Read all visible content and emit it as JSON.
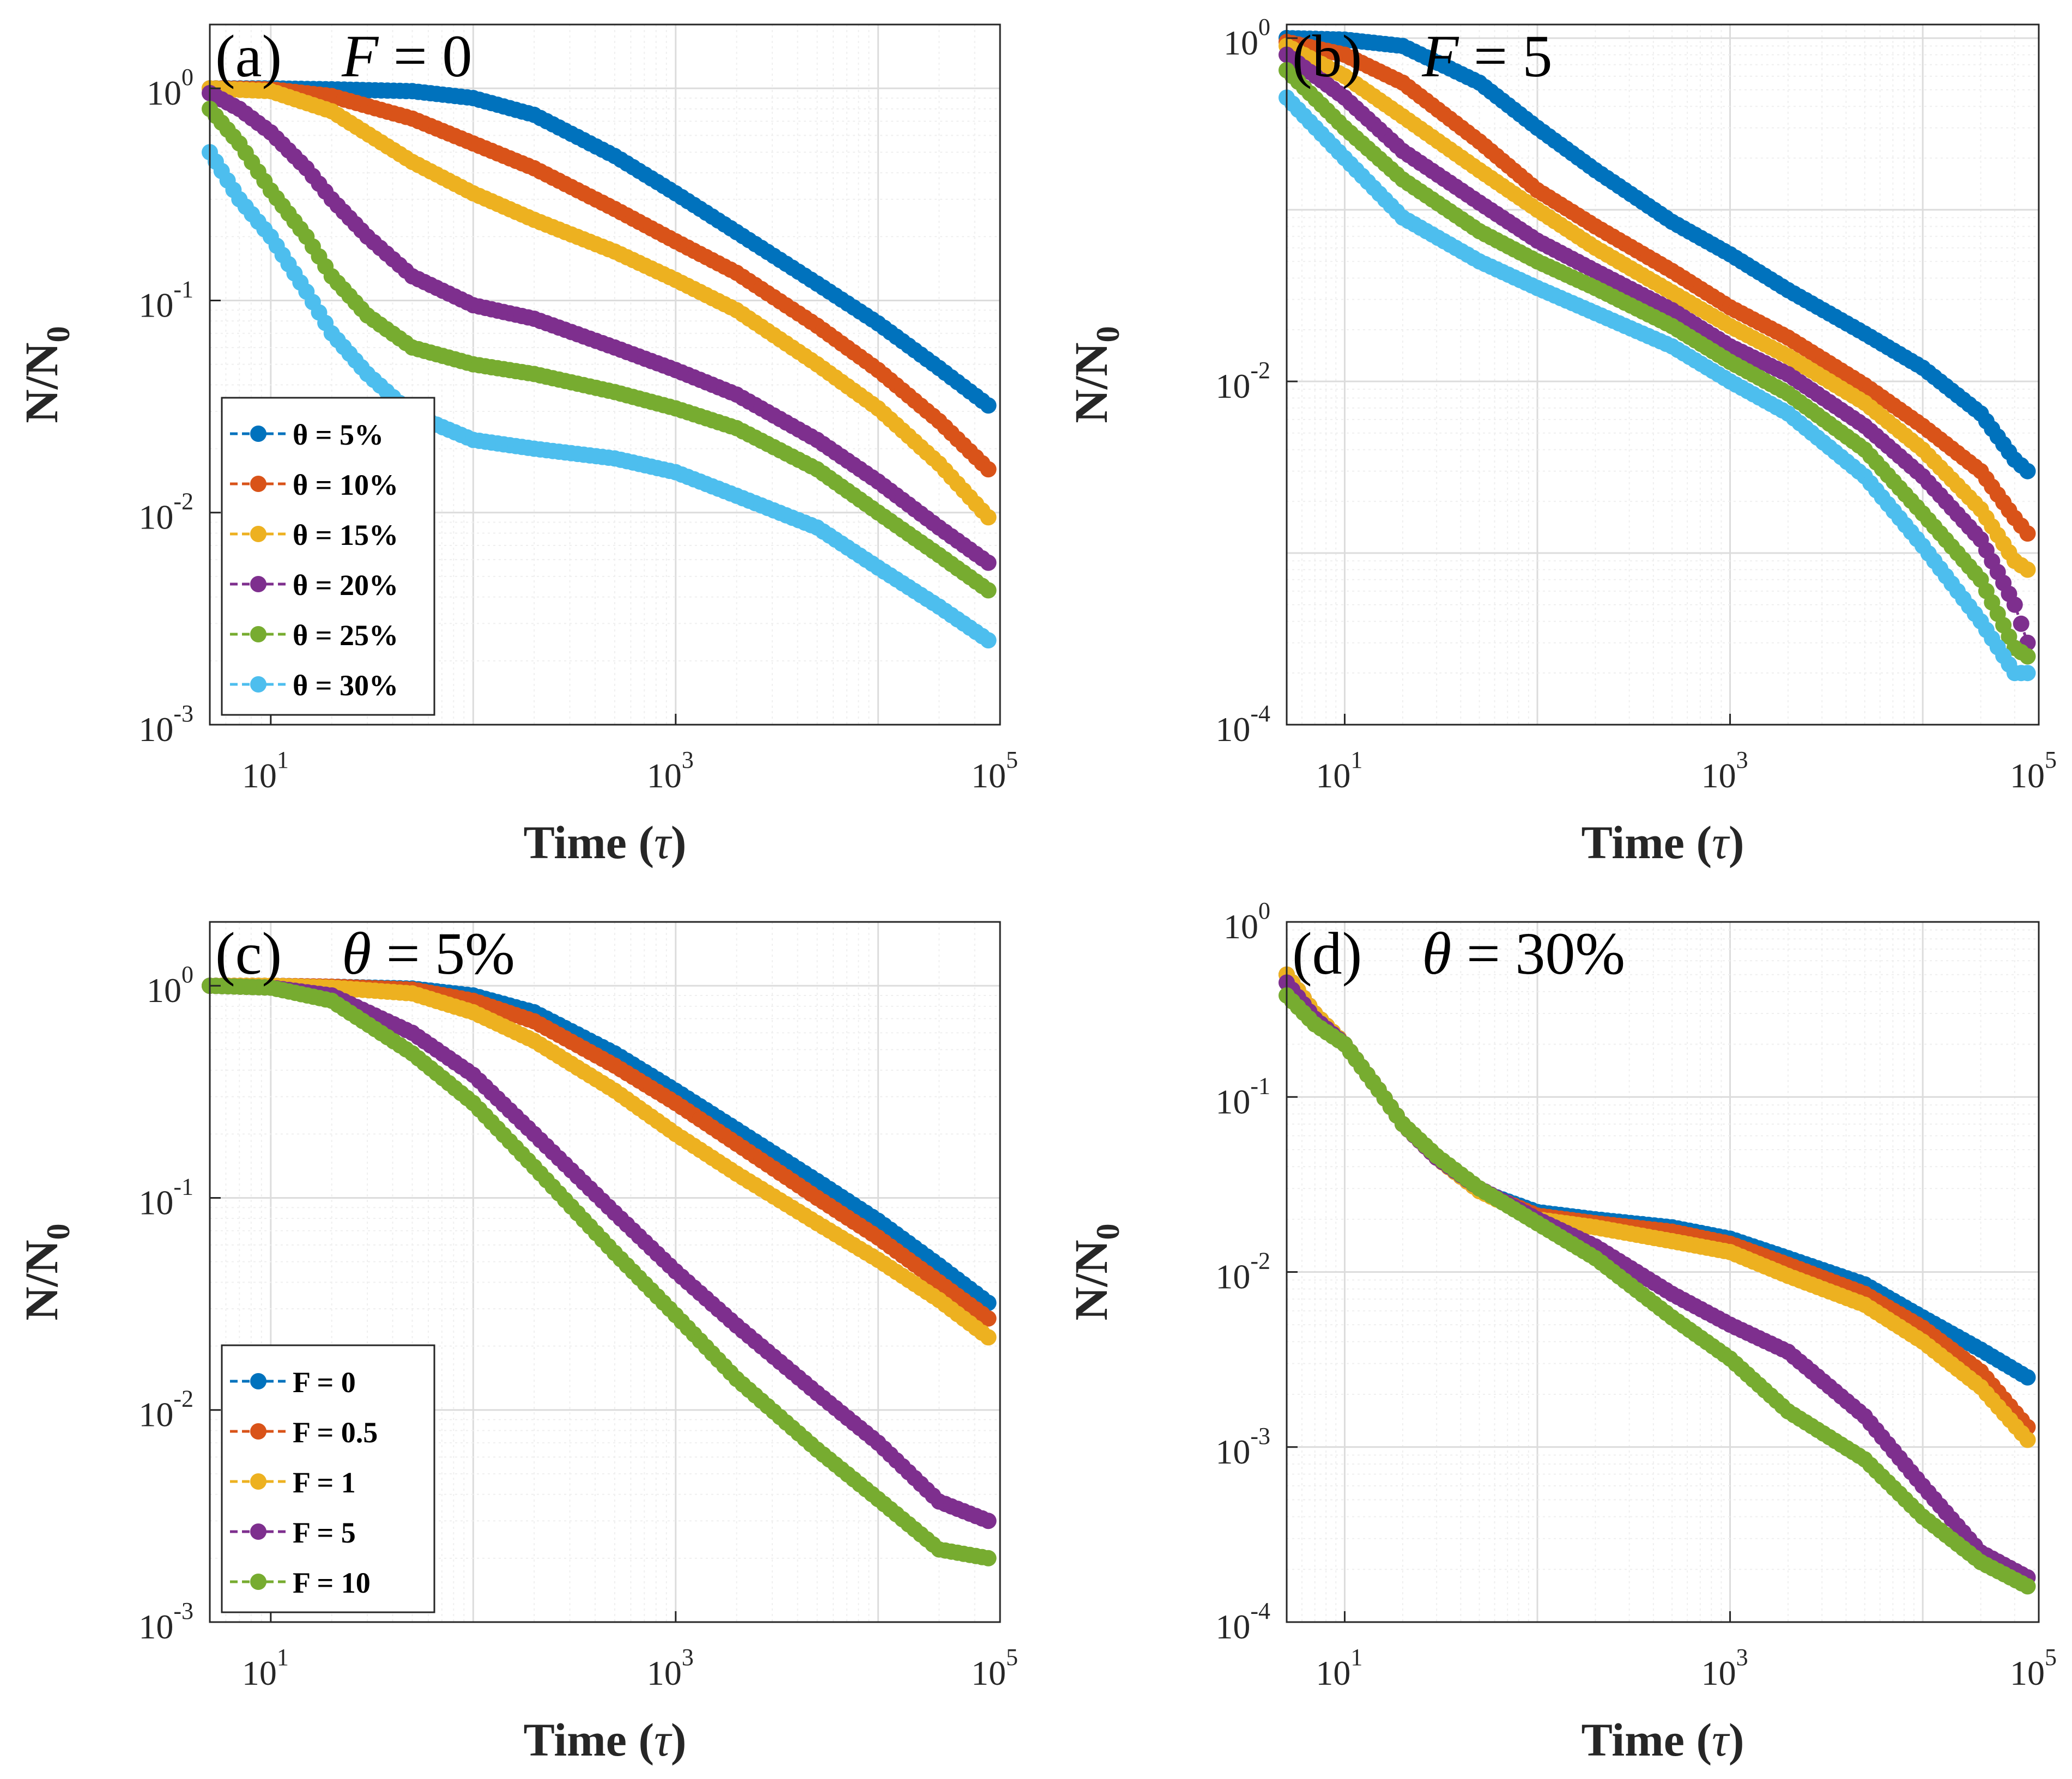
{
  "figure": {
    "panels": [
      {
        "tag": "(a)",
        "title_var": "F",
        "title_rest": " = 0",
        "ylabel": "N/N",
        "ylabel_sub": "0",
        "xlabel": "Time (",
        "xlabel_var": "τ",
        "xlabel_end": ")"
      },
      {
        "tag": "(b)",
        "title_var": "F",
        "title_rest": " = 5",
        "ylabel": "N/N",
        "ylabel_sub": "0",
        "xlabel": "Time (",
        "xlabel_var": "τ",
        "xlabel_end": ")"
      },
      {
        "tag": "(c)",
        "title_var": "θ",
        "title_rest": " = 5%",
        "ylabel": "N/N",
        "ylabel_sub": "0",
        "xlabel": "Time (",
        "xlabel_var": "τ",
        "xlabel_end": ")"
      },
      {
        "tag": "(d)",
        "title_var": "θ",
        "title_rest": " = 30%",
        "ylabel": "N/N",
        "ylabel_sub": "0",
        "xlabel": "Time (",
        "xlabel_var": "τ",
        "xlabel_end": ")"
      }
    ]
  },
  "colors": {
    "blue": "#0072BD",
    "orange": "#D95319",
    "yellow": "#EDB120",
    "purple": "#7E2F8E",
    "green": "#77AC30",
    "cyan": "#4DBEEE"
  },
  "chart_data": [
    {
      "type": "line",
      "title": "(a) F = 0",
      "xlabel": "Time (τ)",
      "ylabel": "N/N0",
      "xscale": "log",
      "yscale": "log",
      "xlim": [
        5,
        40000
      ],
      "ylim": [
        0.001,
        2
      ],
      "xticks": [
        10,
        1000,
        100000
      ],
      "xtick_labels": [
        [
          "10",
          "1"
        ],
        [
          "10",
          "3"
        ],
        [
          "10",
          "5"
        ]
      ],
      "yticks": [
        0.001,
        0.01,
        0.1,
        1
      ],
      "ytick_labels": [
        [
          "10",
          "-3"
        ],
        [
          "10",
          "-2"
        ],
        [
          "10",
          "-1"
        ],
        [
          "10",
          "0"
        ]
      ],
      "grid": true,
      "legend_position": "lower-left",
      "series": [
        {
          "name": "θ = 5%",
          "color": "blue",
          "x": [
            5,
            10,
            20,
            50,
            100,
            200,
            500,
            1000,
            2000,
            5000,
            10000,
            20000,
            35000
          ],
          "y": [
            1,
            1,
            0.99,
            0.97,
            0.9,
            0.75,
            0.48,
            0.32,
            0.21,
            0.12,
            0.078,
            0.048,
            0.032
          ]
        },
        {
          "name": "θ = 10%",
          "color": "orange",
          "x": [
            5,
            10,
            20,
            50,
            100,
            200,
            500,
            1000,
            2000,
            5000,
            10000,
            20000,
            35000
          ],
          "y": [
            1,
            0.99,
            0.92,
            0.72,
            0.55,
            0.42,
            0.27,
            0.19,
            0.135,
            0.076,
            0.047,
            0.027,
            0.016
          ]
        },
        {
          "name": "θ = 15%",
          "color": "yellow",
          "x": [
            5,
            10,
            20,
            50,
            100,
            200,
            500,
            1000,
            2000,
            5000,
            10000,
            20000,
            35000
          ],
          "y": [
            1,
            0.97,
            0.78,
            0.45,
            0.32,
            0.24,
            0.17,
            0.125,
            0.09,
            0.05,
            0.031,
            0.017,
            0.0095
          ]
        },
        {
          "name": "θ = 20%",
          "color": "purple",
          "x": [
            5,
            7,
            10,
            15,
            20,
            30,
            50,
            100,
            200,
            500,
            1000,
            2000,
            5000,
            10000,
            20000,
            35000
          ],
          "y": [
            0.95,
            0.8,
            0.62,
            0.42,
            0.3,
            0.2,
            0.13,
            0.095,
            0.082,
            0.06,
            0.047,
            0.036,
            0.022,
            0.014,
            0.0085,
            0.0058
          ]
        },
        {
          "name": "θ = 25%",
          "color": "green",
          "x": [
            5,
            7,
            10,
            15,
            20,
            30,
            50,
            100,
            200,
            500,
            1000,
            2000,
            5000,
            10000,
            20000,
            35000
          ],
          "y": [
            0.8,
            0.55,
            0.33,
            0.2,
            0.13,
            0.085,
            0.06,
            0.05,
            0.045,
            0.037,
            0.031,
            0.025,
            0.016,
            0.01,
            0.0063,
            0.0043
          ]
        },
        {
          "name": "θ = 30%",
          "color": "cyan",
          "x": [
            5,
            7,
            10,
            15,
            20,
            30,
            50,
            100,
            200,
            500,
            1000,
            2000,
            5000,
            10000,
            20000,
            35000
          ],
          "y": [
            0.5,
            0.3,
            0.2,
            0.11,
            0.07,
            0.045,
            0.029,
            0.022,
            0.02,
            0.018,
            0.0155,
            0.012,
            0.0085,
            0.0055,
            0.0036,
            0.0025
          ]
        }
      ]
    },
    {
      "type": "line",
      "title": "(b) F = 5",
      "xlabel": "Time (τ)",
      "ylabel": "N/N0",
      "xscale": "log",
      "yscale": "log",
      "xlim": [
        5,
        40000
      ],
      "ylim": [
        0.0001,
        1.2
      ],
      "xticks": [
        10,
        1000,
        100000
      ],
      "xtick_labels": [
        [
          "10",
          "1"
        ],
        [
          "10",
          "3"
        ],
        [
          "10",
          "5"
        ]
      ],
      "yticks": [
        0.0001,
        0.01,
        1
      ],
      "ytick_labels": [
        [
          "10",
          "-4"
        ],
        [
          "10",
          "-2"
        ],
        [
          "10",
          "0"
        ]
      ],
      "grid": true,
      "series": [
        {
          "name": "θ = 5%",
          "color": "blue",
          "x": [
            5,
            10,
            20,
            50,
            100,
            200,
            500,
            1000,
            2000,
            5000,
            10000,
            20000,
            30000,
            35000
          ],
          "y": [
            1,
            0.98,
            0.9,
            0.55,
            0.3,
            0.17,
            0.085,
            0.055,
            0.034,
            0.019,
            0.012,
            0.0065,
            0.0035,
            0.003
          ]
        },
        {
          "name": "θ = 10%",
          "color": "orange",
          "x": [
            5,
            10,
            20,
            50,
            100,
            200,
            500,
            1000,
            2000,
            5000,
            10000,
            20000,
            30000,
            35000
          ],
          "y": [
            0.95,
            0.8,
            0.55,
            0.25,
            0.13,
            0.08,
            0.044,
            0.027,
            0.018,
            0.0095,
            0.0055,
            0.003,
            0.0016,
            0.0013
          ]
        },
        {
          "name": "θ = 15%",
          "color": "yellow",
          "x": [
            5,
            10,
            20,
            50,
            100,
            200,
            500,
            1000,
            2000,
            5000,
            10000,
            20000,
            30000,
            35000
          ],
          "y": [
            0.9,
            0.6,
            0.35,
            0.17,
            0.1,
            0.06,
            0.033,
            0.021,
            0.014,
            0.0075,
            0.004,
            0.0018,
            0.0009,
            0.0008
          ]
        },
        {
          "name": "θ = 20%",
          "color": "purple",
          "x": [
            5,
            10,
            20,
            50,
            100,
            200,
            500,
            1000,
            2000,
            5000,
            10000,
            20000,
            30000,
            35000
          ],
          "y": [
            0.8,
            0.45,
            0.22,
            0.11,
            0.066,
            0.044,
            0.026,
            0.016,
            0.011,
            0.0055,
            0.0028,
            0.0012,
            0.0005,
            0.0003
          ]
        },
        {
          "name": "θ = 25%",
          "color": "green",
          "x": [
            5,
            10,
            20,
            50,
            100,
            200,
            500,
            1000,
            2000,
            5000,
            10000,
            20000,
            30000,
            35000
          ],
          "y": [
            0.65,
            0.3,
            0.15,
            0.075,
            0.05,
            0.035,
            0.021,
            0.013,
            0.0085,
            0.004,
            0.0017,
            0.0007,
            0.00028,
            0.00025
          ]
        },
        {
          "name": "θ = 30%",
          "color": "cyan",
          "x": [
            5,
            10,
            20,
            50,
            100,
            200,
            500,
            1000,
            2000,
            5000,
            10000,
            20000,
            30000,
            35000
          ],
          "y": [
            0.45,
            0.2,
            0.09,
            0.05,
            0.035,
            0.025,
            0.016,
            0.01,
            0.0065,
            0.0028,
            0.0011,
            0.0004,
            0.0002,
            0.0002
          ]
        }
      ]
    },
    {
      "type": "line",
      "title": "(c) θ = 5%",
      "xlabel": "Time (τ)",
      "ylabel": "N/N0",
      "xscale": "log",
      "yscale": "log",
      "xlim": [
        5,
        40000
      ],
      "ylim": [
        0.001,
        2
      ],
      "xticks": [
        10,
        1000,
        100000
      ],
      "xtick_labels": [
        [
          "10",
          "1"
        ],
        [
          "10",
          "3"
        ],
        [
          "10",
          "5"
        ]
      ],
      "yticks": [
        0.001,
        0.01,
        0.1,
        1
      ],
      "ytick_labels": [
        [
          "10",
          "-3"
        ],
        [
          "10",
          "-2"
        ],
        [
          "10",
          "-1"
        ],
        [
          "10",
          "0"
        ]
      ],
      "grid": true,
      "legend_position": "lower-left",
      "series": [
        {
          "name": "F = 0",
          "color": "blue",
          "x": [
            5,
            10,
            20,
            50,
            100,
            200,
            500,
            1000,
            2000,
            5000,
            10000,
            20000,
            35000
          ],
          "y": [
            1,
            1,
            0.99,
            0.97,
            0.9,
            0.75,
            0.48,
            0.32,
            0.21,
            0.12,
            0.078,
            0.048,
            0.032
          ]
        },
        {
          "name": "F = 0.5",
          "color": "orange",
          "x": [
            5,
            10,
            20,
            50,
            100,
            200,
            500,
            1000,
            2000,
            5000,
            10000,
            20000,
            35000
          ],
          "y": [
            1,
            1,
            0.99,
            0.96,
            0.85,
            0.68,
            0.42,
            0.28,
            0.18,
            0.1,
            0.065,
            0.04,
            0.027
          ]
        },
        {
          "name": "F = 1",
          "color": "yellow",
          "x": [
            5,
            10,
            20,
            50,
            100,
            200,
            500,
            1000,
            2000,
            5000,
            10000,
            20000,
            35000
          ],
          "y": [
            1,
            1,
            0.98,
            0.92,
            0.75,
            0.55,
            0.32,
            0.2,
            0.13,
            0.076,
            0.051,
            0.033,
            0.022
          ]
        },
        {
          "name": "F = 5",
          "color": "purple",
          "x": [
            5,
            10,
            20,
            50,
            100,
            200,
            500,
            1000,
            2000,
            5000,
            10000,
            20000,
            35000
          ],
          "y": [
            1,
            0.98,
            0.9,
            0.6,
            0.38,
            0.2,
            0.085,
            0.045,
            0.025,
            0.012,
            0.007,
            0.0037,
            0.003
          ]
        },
        {
          "name": "F = 10",
          "color": "green",
          "x": [
            5,
            10,
            20,
            50,
            100,
            200,
            500,
            1000,
            2000,
            5000,
            10000,
            20000,
            35000
          ],
          "y": [
            1,
            0.98,
            0.85,
            0.48,
            0.28,
            0.14,
            0.055,
            0.028,
            0.014,
            0.0065,
            0.0038,
            0.0022,
            0.002
          ]
        }
      ]
    },
    {
      "type": "line",
      "title": "(d) θ = 30%",
      "xlabel": "Time (τ)",
      "ylabel": "N/N0",
      "xscale": "log",
      "yscale": "log",
      "xlim": [
        5,
        40000
      ],
      "ylim": [
        0.0001,
        1
      ],
      "xticks": [
        10,
        1000,
        100000
      ],
      "xtick_labels": [
        [
          "10",
          "1"
        ],
        [
          "10",
          "3"
        ],
        [
          "10",
          "5"
        ]
      ],
      "yticks": [
        0.0001,
        0.001,
        0.01,
        0.1,
        1
      ],
      "ytick_labels": [
        [
          "10",
          "-4"
        ],
        [
          "10",
          "-3"
        ],
        [
          "10",
          "-2"
        ],
        [
          "10",
          "-1"
        ],
        [
          "10",
          "0"
        ]
      ],
      "grid": true,
      "series": [
        {
          "name": "F = 0",
          "color": "blue",
          "x": [
            5,
            7,
            10,
            15,
            20,
            30,
            50,
            100,
            200,
            500,
            1000,
            2000,
            5000,
            10000,
            20000,
            35000
          ],
          "y": [
            0.5,
            0.3,
            0.2,
            0.11,
            0.07,
            0.045,
            0.029,
            0.022,
            0.02,
            0.018,
            0.0155,
            0.012,
            0.0085,
            0.0055,
            0.0036,
            0.0025
          ]
        },
        {
          "name": "F = 0.5",
          "color": "orange",
          "x": [
            5,
            7,
            10,
            15,
            20,
            30,
            50,
            100,
            200,
            500,
            1000,
            2000,
            5000,
            10000,
            20000,
            35000
          ],
          "y": [
            0.5,
            0.3,
            0.2,
            0.11,
            0.07,
            0.045,
            0.029,
            0.021,
            0.019,
            0.017,
            0.0145,
            0.011,
            0.0075,
            0.0048,
            0.0027,
            0.0013
          ]
        },
        {
          "name": "F = 1",
          "color": "yellow",
          "x": [
            5,
            7,
            10,
            15,
            20,
            30,
            50,
            100,
            200,
            500,
            1000,
            2000,
            5000,
            10000,
            20000,
            35000
          ],
          "y": [
            0.5,
            0.3,
            0.2,
            0.11,
            0.07,
            0.045,
            0.029,
            0.02,
            0.018,
            0.015,
            0.013,
            0.0095,
            0.0065,
            0.004,
            0.0022,
            0.0011
          ]
        },
        {
          "name": "F = 5",
          "color": "purple",
          "x": [
            5,
            7,
            10,
            15,
            20,
            30,
            50,
            100,
            200,
            500,
            1000,
            2000,
            5000,
            10000,
            20000,
            35000
          ],
          "y": [
            0.45,
            0.28,
            0.2,
            0.11,
            0.07,
            0.045,
            0.03,
            0.02,
            0.014,
            0.0075,
            0.005,
            0.0035,
            0.0015,
            0.0006,
            0.00025,
            0.00018
          ]
        },
        {
          "name": "F = 10",
          "color": "green",
          "x": [
            5,
            7,
            10,
            15,
            20,
            30,
            50,
            100,
            200,
            500,
            1000,
            2000,
            5000,
            10000,
            20000,
            35000
          ],
          "y": [
            0.38,
            0.26,
            0.2,
            0.11,
            0.07,
            0.046,
            0.03,
            0.019,
            0.012,
            0.0055,
            0.0032,
            0.0016,
            0.00085,
            0.0004,
            0.00022,
            0.00016
          ]
        }
      ]
    }
  ]
}
